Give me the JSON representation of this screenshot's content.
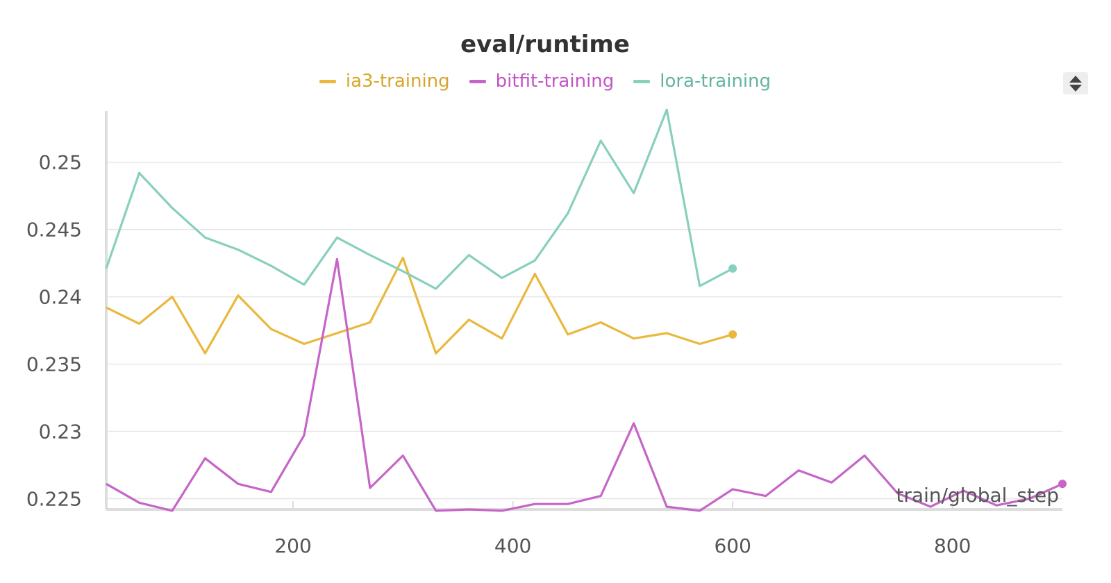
{
  "chart_data": {
    "type": "line",
    "title": "eval/runtime",
    "xlabel": "train/global_step",
    "ylabel": "",
    "xlim": [
      30,
      900
    ],
    "ylim": [
      0.2242,
      0.2538
    ],
    "x_ticks": [
      200,
      400,
      600,
      800
    ],
    "y_ticks": [
      0.225,
      0.23,
      0.235,
      0.24,
      0.245,
      0.25
    ],
    "grid": true,
    "legend_position": "top-center",
    "series": [
      {
        "name": "ia3-training",
        "color": "#e9b83d",
        "end_marker": true,
        "x": [
          30,
          60,
          90,
          120,
          150,
          180,
          210,
          240,
          270,
          300,
          330,
          360,
          390,
          420,
          450,
          480,
          510,
          540,
          570,
          600
        ],
        "y": [
          0.2392,
          0.238,
          0.24,
          0.2358,
          0.2401,
          0.2376,
          0.2365,
          0.2373,
          0.2381,
          0.2429,
          0.2358,
          0.2383,
          0.2369,
          0.2417,
          0.2372,
          0.2381,
          0.2369,
          0.2373,
          0.2365,
          0.2372
        ]
      },
      {
        "name": "bitfit-training",
        "color": "#c665c8",
        "end_marker": true,
        "x": [
          30,
          60,
          90,
          120,
          150,
          180,
          210,
          240,
          270,
          300,
          330,
          360,
          390,
          420,
          450,
          480,
          510,
          540,
          570,
          600,
          630,
          660,
          690,
          720,
          750,
          780,
          810,
          840,
          870,
          900
        ],
        "y": [
          0.2261,
          0.2247,
          0.2241,
          0.228,
          0.2261,
          0.2255,
          0.2297,
          0.2428,
          0.2258,
          0.2282,
          0.2241,
          0.2242,
          0.2241,
          0.2246,
          0.2246,
          0.2252,
          0.2306,
          0.2244,
          0.2241,
          0.2257,
          0.2252,
          0.2271,
          0.2262,
          0.2282,
          0.2254,
          0.2244,
          0.2256,
          0.2245,
          0.225,
          0.2261
        ]
      },
      {
        "name": "lora-training",
        "color": "#88cfbe",
        "end_marker": true,
        "x": [
          30,
          60,
          90,
          120,
          150,
          180,
          210,
          240,
          270,
          300,
          330,
          360,
          390,
          420,
          450,
          480,
          510,
          540,
          570,
          600
        ],
        "y": [
          0.2421,
          0.2492,
          0.2466,
          0.2444,
          0.2435,
          0.2423,
          0.2409,
          0.2444,
          0.2431,
          0.2419,
          0.2406,
          0.2431,
          0.2414,
          0.2427,
          0.2462,
          0.2516,
          0.2477,
          0.2539,
          0.2408,
          0.2421
        ]
      }
    ]
  }
}
